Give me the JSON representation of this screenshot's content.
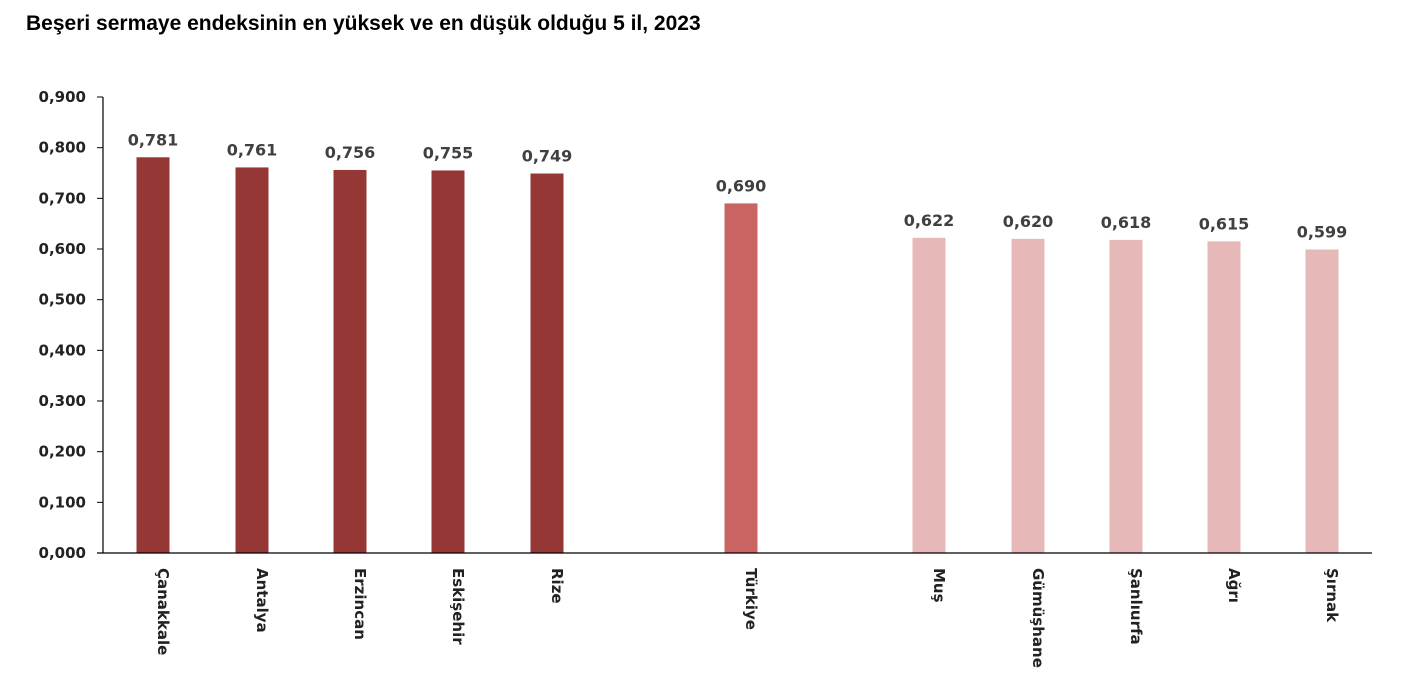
{
  "chart_data": {
    "type": "bar",
    "title": "Beşeri sermaye endeksinin en yüksek ve en düşük olduğu 5 il, 2023",
    "xlabel": "",
    "ylabel": "",
    "ylim": [
      0,
      0.9
    ],
    "yticks": [
      "0,000",
      "0,100",
      "0,200",
      "0,300",
      "0,400",
      "0,500",
      "0,600",
      "0,700",
      "0,800",
      "0,900"
    ],
    "grid": false,
    "legend": "none",
    "categories": [
      "Çanakkale",
      "Antalya",
      "Erzincan",
      "Eskişehir",
      "Rize",
      "Türkiye",
      "Muş",
      "Gümüşhane",
      "Şanlıurfa",
      "Ağrı",
      "Şırnak"
    ],
    "values": [
      0.781,
      0.761,
      0.756,
      0.755,
      0.749,
      0.69,
      0.622,
      0.62,
      0.618,
      0.615,
      0.599
    ],
    "value_labels": [
      "0,781",
      "0,761",
      "0,756",
      "0,755",
      "0,749",
      "0,690",
      "0,622",
      "0,620",
      "0,618",
      "0,615",
      "0,599"
    ],
    "groups": [
      "top",
      "top",
      "top",
      "top",
      "top",
      "national",
      "bottom",
      "bottom",
      "bottom",
      "bottom",
      "bottom"
    ],
    "colors": {
      "top": "#953735",
      "national": "#c96463",
      "bottom": "#e6b8b7",
      "axis": "#000000"
    }
  }
}
